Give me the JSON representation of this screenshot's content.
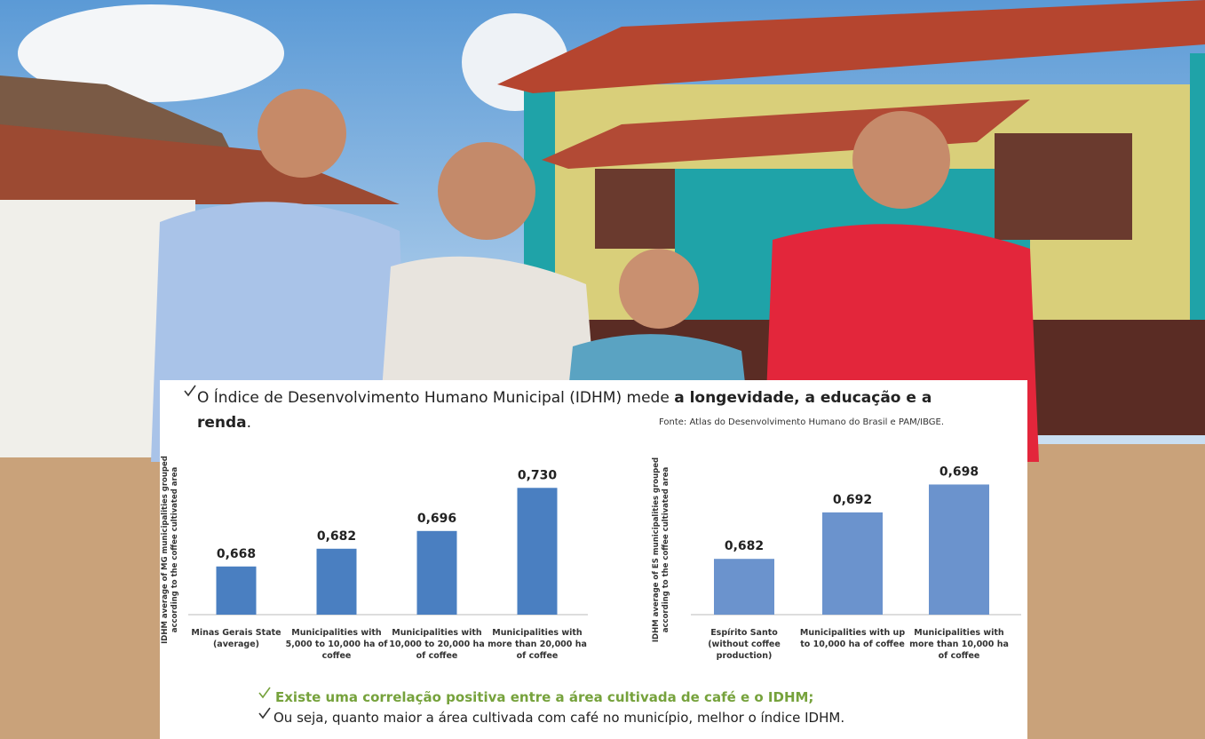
{
  "header": {
    "bullet_plain": "O Índice de Desenvolvimento Humano Municipal (IDHM) mede ",
    "bullet_bold": "a longevidade, a educação e a renda",
    "bullet_end": ".",
    "source": "Fonte: Atlas do Desenvolvimento Humano do Brasil e PAM/IBGE."
  },
  "chart_data": [
    {
      "type": "bar",
      "y_label": "IDHM average of MG municipalities grouped according to the coffee cultivated area",
      "categories": [
        "Minas Gerais State (average)",
        "Municipalities with 5,000 to 10,000 ha of coffee",
        "Municipalities with 10,000 to 20,000 ha of coffee",
        "Municipalities with more than 20,000 ha of coffee"
      ],
      "values": [
        0.668,
        0.682,
        0.696,
        0.73
      ],
      "value_labels": [
        "0,668",
        "0,682",
        "0,696",
        "0,730"
      ],
      "color": "#4a7fc1",
      "ylim": [
        0.63,
        0.74
      ]
    },
    {
      "type": "bar",
      "y_label": "IDHM average of ES municipalities grouped according to the coffee cultivated area",
      "categories": [
        "Espírito Santo (without coffee production)",
        "Municipalities with up to 10,000 ha of coffee",
        "Municipalities with more than 10,000 ha of coffee"
      ],
      "values": [
        0.682,
        0.692,
        0.698
      ],
      "value_labels": [
        "0,682",
        "0,692",
        "0,698"
      ],
      "color": "#6b93cd",
      "ylim": [
        0.67,
        0.7
      ]
    }
  ],
  "footer": {
    "note1": "Existe uma correlação positiva entre a área cultivada de café e o IDHM;",
    "note2": "Ou seja, quanto maior a área cultivada com café no município, melhor o índice IDHM."
  }
}
